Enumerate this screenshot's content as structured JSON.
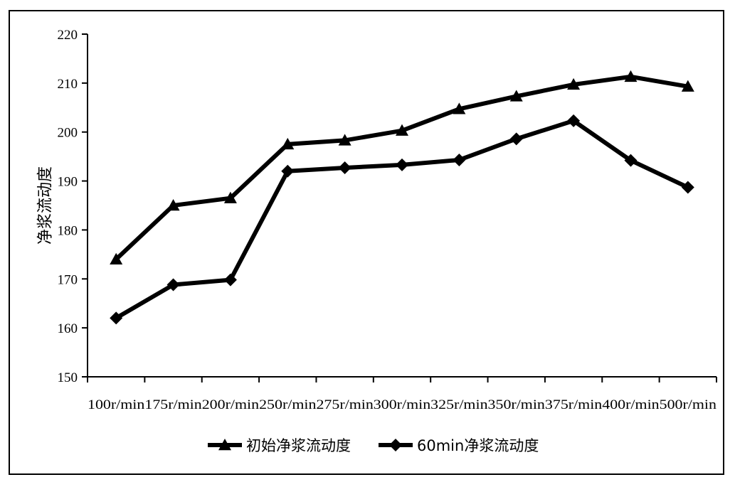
{
  "chart_data": {
    "type": "line",
    "title": "",
    "xlabel": "",
    "ylabel": "净浆流动度",
    "categories": [
      "100r/min",
      "175r/min",
      "200r/min",
      "250r/min",
      "275r/min",
      "300r/min",
      "325r/min",
      "350r/min",
      "375r/min",
      "400r/min",
      "500r/min"
    ],
    "ylim": [
      150,
      220
    ],
    "yticks": [
      150,
      160,
      170,
      180,
      190,
      200,
      210,
      220
    ],
    "grid": false,
    "legend_position": "bottom",
    "series": [
      {
        "name": "初始净浆流动度",
        "marker": "triangle",
        "color": "#000000",
        "values": [
          174.0,
          185.0,
          186.5,
          197.5,
          198.3,
          200.3,
          204.7,
          207.3,
          209.7,
          211.3,
          209.3
        ]
      },
      {
        "name": "60min净浆流动度",
        "marker": "diamond",
        "color": "#000000",
        "values": [
          162.0,
          168.8,
          169.8,
          192.0,
          192.7,
          193.3,
          194.3,
          198.6,
          202.3,
          194.2,
          188.7
        ]
      }
    ]
  }
}
